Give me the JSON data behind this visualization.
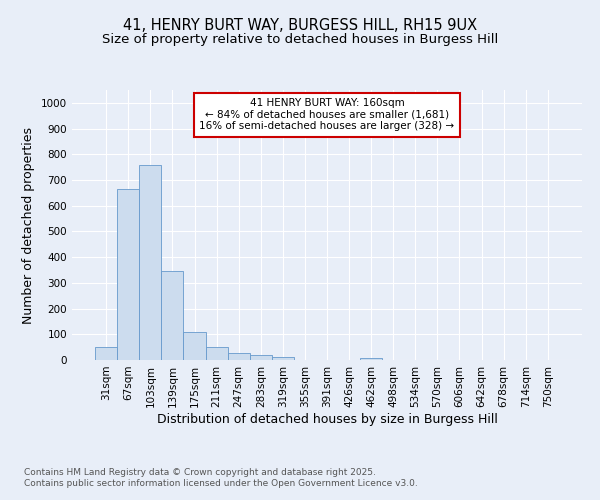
{
  "title_line1": "41, HENRY BURT WAY, BURGESS HILL, RH15 9UX",
  "title_line2": "Size of property relative to detached houses in Burgess Hill",
  "xlabel": "Distribution of detached houses by size in Burgess Hill",
  "ylabel": "Number of detached properties",
  "bar_color": "#ccdcee",
  "bar_edge_color": "#6699cc",
  "background_color": "#e8eef8",
  "grid_color": "#ffffff",
  "categories": [
    "31sqm",
    "67sqm",
    "103sqm",
    "139sqm",
    "175sqm",
    "211sqm",
    "247sqm",
    "283sqm",
    "319sqm",
    "355sqm",
    "391sqm",
    "426sqm",
    "462sqm",
    "498sqm",
    "534sqm",
    "570sqm",
    "606sqm",
    "642sqm",
    "678sqm",
    "714sqm",
    "750sqm"
  ],
  "values": [
    52,
    665,
    757,
    345,
    110,
    52,
    27,
    18,
    12,
    0,
    0,
    0,
    7,
    0,
    0,
    0,
    0,
    0,
    0,
    0,
    0
  ],
  "ylim": [
    0,
    1050
  ],
  "yticks": [
    0,
    100,
    200,
    300,
    400,
    500,
    600,
    700,
    800,
    900,
    1000
  ],
  "annotation_text_line1": "41 HENRY BURT WAY: 160sqm",
  "annotation_text_line2": "← 84% of detached houses are smaller (1,681)",
  "annotation_text_line3": "16% of semi-detached houses are larger (328) →",
  "annotation_box_facecolor": "#ffffff",
  "annotation_box_edgecolor": "#cc0000",
  "footer_line1": "Contains HM Land Registry data © Crown copyright and database right 2025.",
  "footer_line2": "Contains public sector information licensed under the Open Government Licence v3.0.",
  "title_fontsize": 10.5,
  "subtitle_fontsize": 9.5,
  "axis_label_fontsize": 9,
  "tick_fontsize": 7.5,
  "annotation_fontsize": 7.5,
  "footer_fontsize": 6.5
}
